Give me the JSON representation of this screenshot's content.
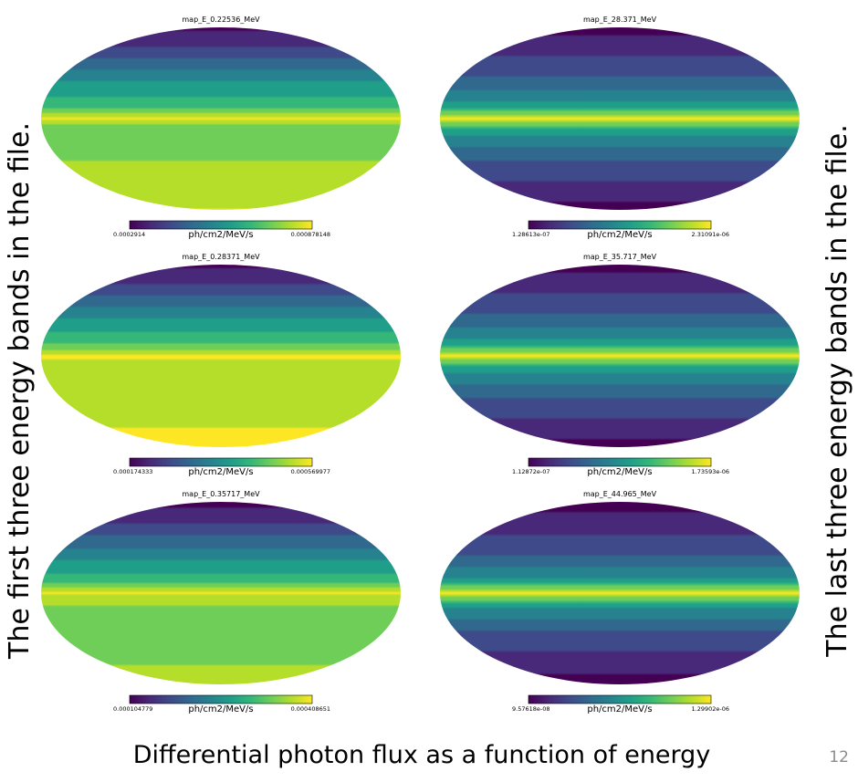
{
  "side_labels": {
    "left": "The first three energy bands in the file.",
    "right": "The last three energy bands in the file."
  },
  "caption": "Differential photon flux as a function of energy",
  "page_number": "12",
  "colormap": [
    "#440154",
    "#482878",
    "#3e4a89",
    "#31688e",
    "#26828e",
    "#1f9e89",
    "#35b779",
    "#6ece58",
    "#b5de2b",
    "#fde725"
  ],
  "chart_data": [
    {
      "type": "heatmap",
      "projection": "mollweide",
      "title": "map_E_0.22536_MeV",
      "unit": "ph/cm2/MeV/s",
      "vmin_label": "0.0002914",
      "vmax_label": "0.000878148",
      "vmin": 0.0002914,
      "vmax": 0.000878148,
      "profile_lat_deg": [
        90,
        60,
        30,
        10,
        3,
        0,
        -5,
        -20,
        -45,
        -70,
        -90
      ],
      "profile_norm": [
        0.0,
        0.18,
        0.5,
        0.68,
        0.9,
        1.0,
        0.82,
        0.8,
        0.86,
        0.92,
        0.95
      ]
    },
    {
      "type": "heatmap",
      "projection": "mollweide",
      "title": "map_E_0.28371_MeV",
      "unit": "ph/cm2/MeV/s",
      "vmin_label": "0.000174333",
      "vmax_label": "0.000569977",
      "vmin": 0.000174333,
      "vmax": 0.000569977,
      "profile_lat_deg": [
        90,
        60,
        30,
        10,
        3,
        0,
        -5,
        -20,
        -45,
        -70,
        -90
      ],
      "profile_norm": [
        0.0,
        0.18,
        0.5,
        0.7,
        0.9,
        1.0,
        0.92,
        0.91,
        0.93,
        0.95,
        0.96
      ]
    },
    {
      "type": "heatmap",
      "projection": "mollweide",
      "title": "map_E_0.35717_MeV",
      "unit": "ph/cm2/MeV/s",
      "vmin_label": "0.000104779",
      "vmax_label": "0.000408651",
      "vmin": 0.000104779,
      "vmax": 0.000408651,
      "profile_lat_deg": [
        90,
        60,
        30,
        10,
        3,
        0,
        -5,
        -20,
        -45,
        -70,
        -90
      ],
      "profile_norm": [
        0.0,
        0.16,
        0.46,
        0.68,
        0.9,
        1.0,
        0.84,
        0.82,
        0.82,
        0.84,
        0.85
      ]
    },
    {
      "type": "heatmap",
      "projection": "mollweide",
      "title": "map_E_28.371_MeV",
      "unit": "ph/cm2/MeV/s",
      "vmin_label": "1.28613e-07",
      "vmax_label": "2.31091e-06",
      "vmin": 1.28613e-07,
      "vmax": 2.31091e-06,
      "profile_lat_deg": [
        90,
        60,
        30,
        10,
        3,
        0,
        -3,
        -10,
        -30,
        -60,
        -90
      ],
      "profile_norm": [
        0.0,
        0.12,
        0.3,
        0.55,
        0.85,
        1.0,
        0.85,
        0.55,
        0.3,
        0.12,
        0.0
      ]
    },
    {
      "type": "heatmap",
      "projection": "mollweide",
      "title": "map_E_35.717_MeV",
      "unit": "ph/cm2/MeV/s",
      "vmin_label": "1.12872e-07",
      "vmax_label": "1.73593e-06",
      "vmin": 1.12872e-07,
      "vmax": 1.73593e-06,
      "profile_lat_deg": [
        90,
        60,
        30,
        10,
        3,
        0,
        -3,
        -10,
        -30,
        -60,
        -90
      ],
      "profile_norm": [
        0.0,
        0.12,
        0.3,
        0.55,
        0.85,
        1.0,
        0.85,
        0.55,
        0.3,
        0.12,
        0.0
      ]
    },
    {
      "type": "heatmap",
      "projection": "mollweide",
      "title": "map_E_44.965_MeV",
      "unit": "ph/cm2/MeV/s",
      "vmin_label": "9.57618e-08",
      "vmax_label": "1.29902e-06",
      "vmin": 9.57618e-08,
      "vmax": 1.29902e-06,
      "profile_lat_deg": [
        90,
        60,
        30,
        10,
        3,
        0,
        -3,
        -10,
        -30,
        -60,
        -90
      ],
      "profile_norm": [
        0.0,
        0.1,
        0.28,
        0.52,
        0.84,
        1.0,
        0.84,
        0.52,
        0.28,
        0.1,
        0.0
      ]
    }
  ]
}
